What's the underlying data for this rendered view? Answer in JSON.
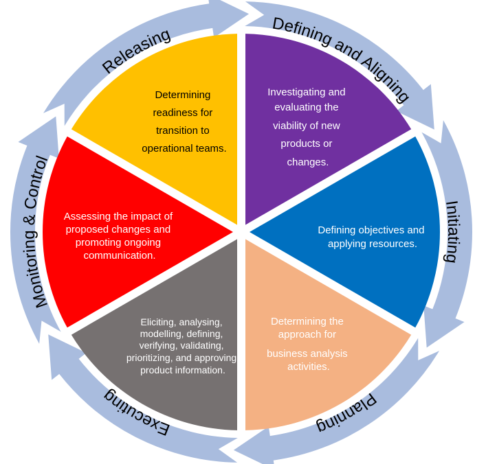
{
  "phases": [
    {
      "key": "defining",
      "label": "Defining and Aligning",
      "color": "#7030A0",
      "text_color": "#ffffff",
      "description": [
        "Investigating and",
        "evaluating the",
        "viability of new",
        "products or",
        "changes."
      ]
    },
    {
      "key": "initiating",
      "label": "Initiating",
      "color": "#0070C0",
      "text_color": "#ffffff",
      "description": [
        "Defining objectives and",
        "applying resources."
      ]
    },
    {
      "key": "planning",
      "label": "Planning",
      "color": "#F4B183",
      "text_color": "#ffffff",
      "description": [
        "Determining the",
        "approach for",
        "business analysis",
        "activities."
      ]
    },
    {
      "key": "executing",
      "label": "Executing",
      "color": "#767171",
      "text_color": "#ffffff",
      "description": [
        "Eliciting, analysing,",
        "modelling, defining,",
        "verifying, validating,",
        "prioritizing, and approving",
        "product information."
      ]
    },
    {
      "key": "monitoring",
      "label": "Monitoring & Control",
      "color": "#FF0000",
      "text_color": "#ffffff",
      "description": [
        "Assessing the impact of",
        "proposed changes and",
        "promoting ongoing",
        "communication."
      ]
    },
    {
      "key": "releasing",
      "label": "Releasing",
      "color": "#FFC000",
      "text_color": "#000000",
      "description": [
        "Determining",
        "readiness for",
        "transition to",
        "operational teams."
      ]
    }
  ],
  "arrow_color": "#A9BCDE"
}
